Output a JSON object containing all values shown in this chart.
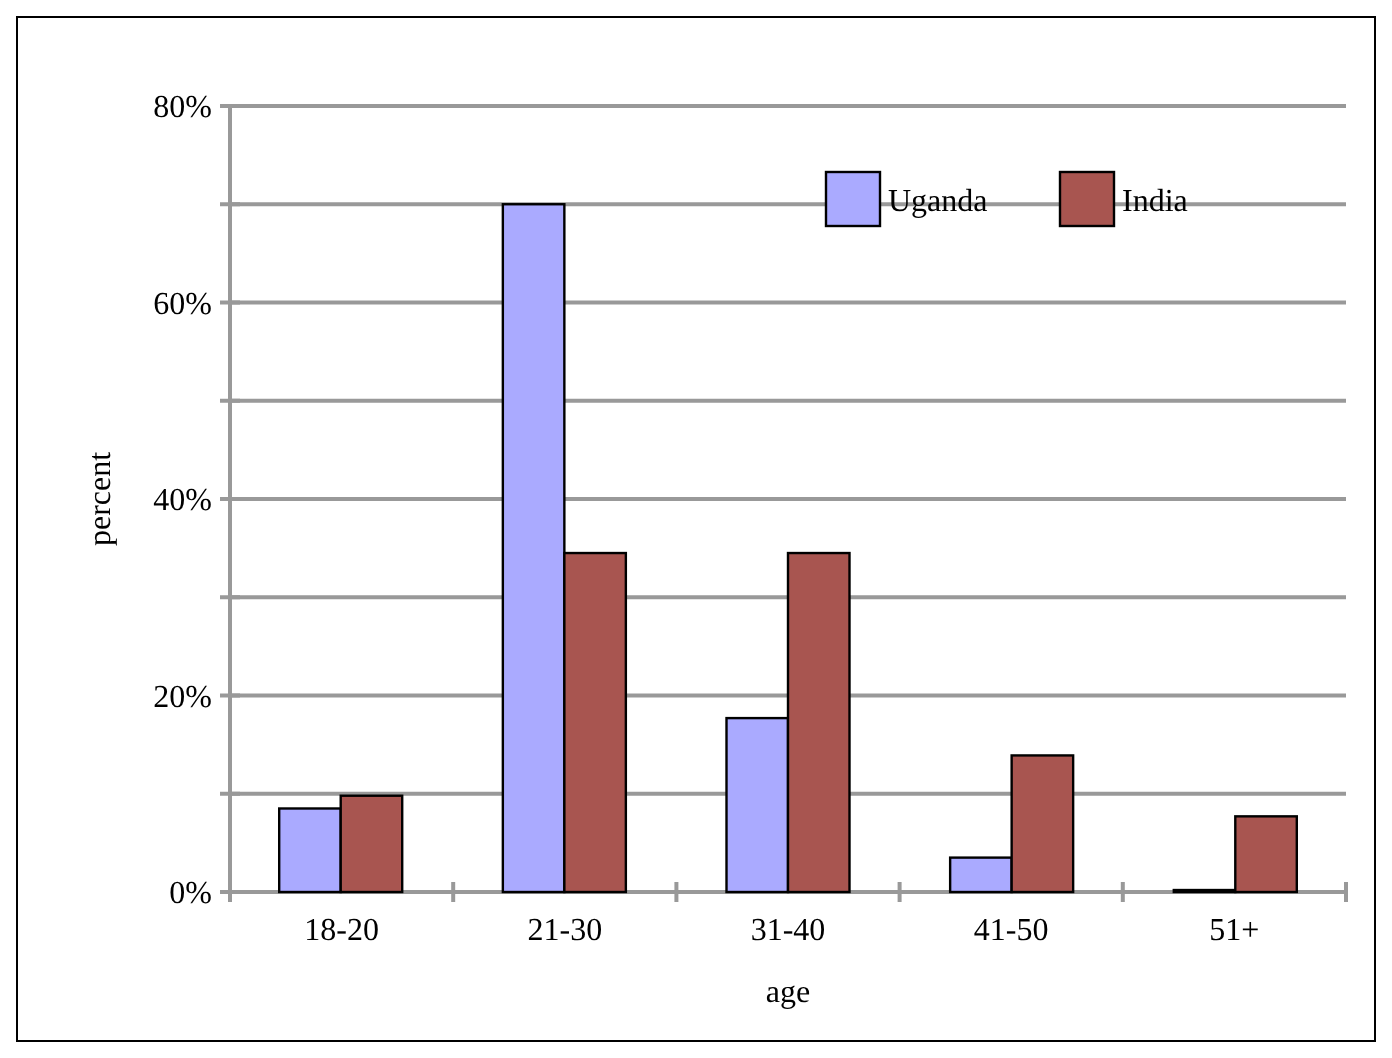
{
  "chart_data": {
    "type": "bar",
    "xlabel": "age",
    "ylabel": "percent",
    "categories": [
      "18-20",
      "21-30",
      "31-40",
      "41-50",
      "51+"
    ],
    "series": [
      {
        "name": "Uganda",
        "color": "#aaaaff",
        "values": [
          8.5,
          70,
          17.7,
          3.5,
          0.2
        ]
      },
      {
        "name": "India",
        "color": "#a85550",
        "values": [
          9.8,
          34.5,
          34.5,
          13.9,
          7.7
        ]
      }
    ],
    "ylim": [
      0,
      80
    ],
    "yticks": [
      {
        "value": 0,
        "label": "0%"
      },
      {
        "value": 10,
        "label": null
      },
      {
        "value": 20,
        "label": "20%"
      },
      {
        "value": 30,
        "label": null
      },
      {
        "value": 40,
        "label": "40%"
      },
      {
        "value": 50,
        "label": null
      },
      {
        "value": 60,
        "label": "60%"
      },
      {
        "value": 70,
        "label": null
      },
      {
        "value": 80,
        "label": "80%"
      }
    ],
    "grid": true,
    "legend": "top right"
  }
}
